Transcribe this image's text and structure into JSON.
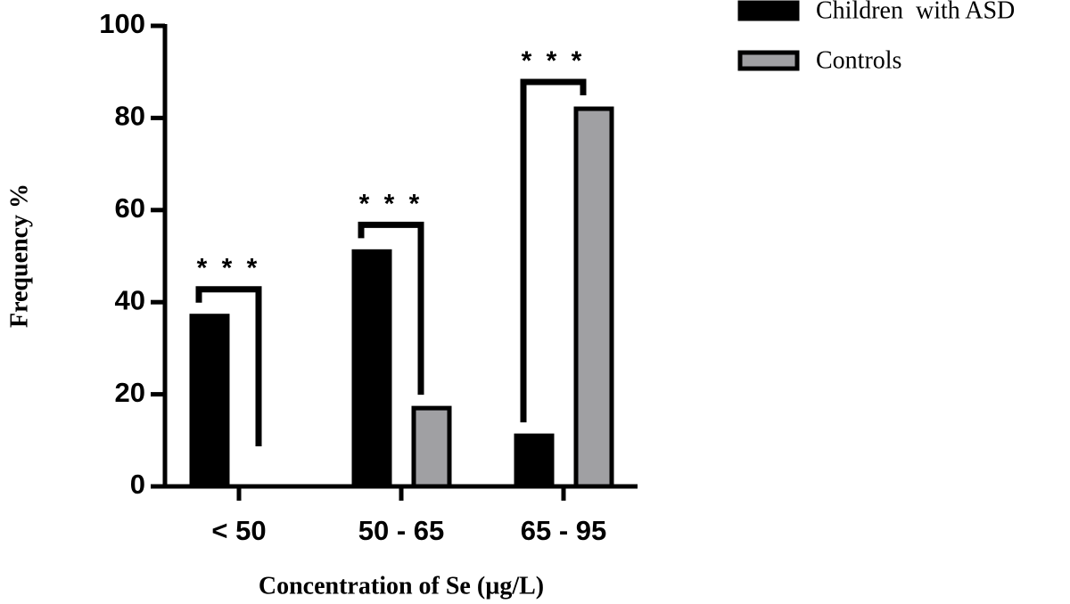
{
  "chart_data": {
    "type": "bar",
    "categories": [
      "< 50",
      "50 - 65",
      "65 - 95"
    ],
    "series": [
      {
        "name": "Children  with ASD",
        "color": "#000000",
        "values": [
          37,
          51,
          11
        ]
      },
      {
        "name": "Controls",
        "color": "#a0a0a3",
        "values": [
          0,
          17,
          82
        ]
      }
    ],
    "annotations": [
      "* * *",
      "* * *",
      "* * *"
    ],
    "xlabel": "Concentration of Se (µg/L)",
    "ylabel": "Frequency %",
    "ylim": [
      0,
      100
    ],
    "yticks": [
      0,
      20,
      40,
      60,
      80,
      100
    ],
    "legend": "upper right"
  }
}
